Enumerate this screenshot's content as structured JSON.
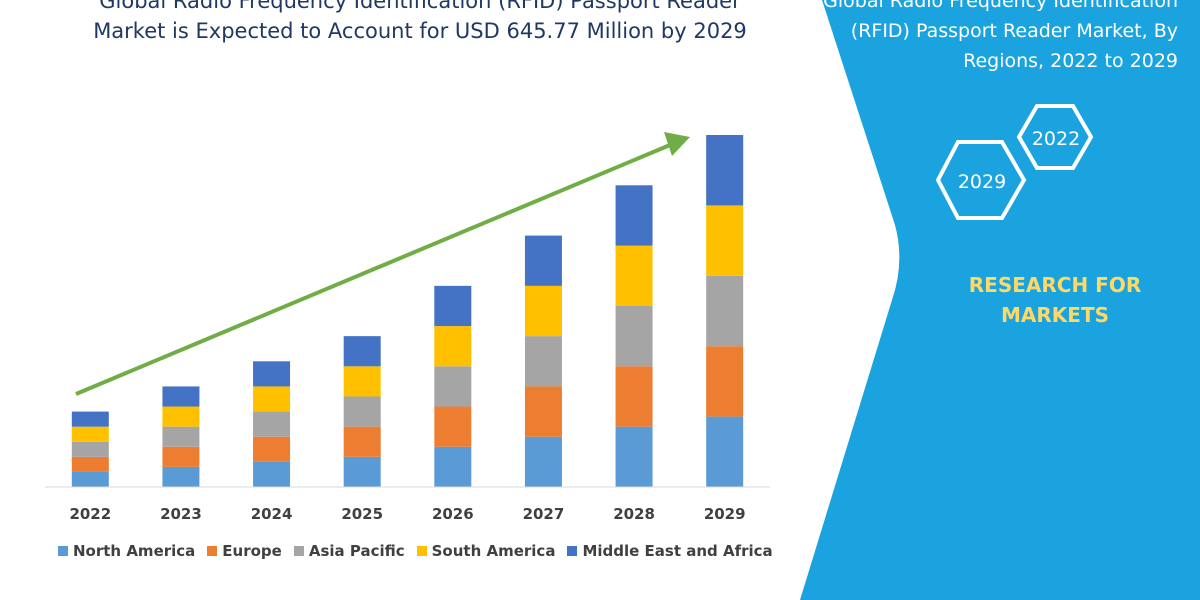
{
  "header": {
    "title": "Global Radio Frequency Identification (RFID) Passport Reader Market is Expected to Account for USD 645.77 Million by 2029"
  },
  "side_panel": {
    "title": "Global Radio Frequency Identification (RFID) Passport Reader Market, By Regions, 2022 to 2029",
    "hex_labels": [
      "2022",
      "2029"
    ],
    "brand": "RESEARCH FOR MARKETS",
    "colors": {
      "panel": "#1ba3e0",
      "hex_outline": "#ffffff",
      "brand": "#ffd966"
    }
  },
  "colors": {
    "trend_arrow": "#70ad47",
    "axis": "#d9d9d9"
  },
  "chart_data": {
    "type": "bar",
    "stacked": true,
    "categories": [
      "2022",
      "2023",
      "2024",
      "2025",
      "2026",
      "2027",
      "2028",
      "2029"
    ],
    "series": [
      {
        "name": "North America",
        "color": "#5b9bd5",
        "values": [
          15,
          20,
          25,
          30,
          40,
          50,
          60,
          70
        ]
      },
      {
        "name": "Europe",
        "color": "#ed7d31",
        "values": [
          15,
          20,
          25,
          30,
          40,
          50,
          60,
          70
        ]
      },
      {
        "name": "Asia Pacific",
        "color": "#a5a5a5",
        "values": [
          15,
          20,
          25,
          30,
          40,
          50,
          60,
          70
        ]
      },
      {
        "name": "South America",
        "color": "#ffc000",
        "values": [
          15,
          20,
          25,
          30,
          40,
          50,
          60,
          70
        ]
      },
      {
        "name": "Middle East and Africa",
        "color": "#4472c4",
        "values": [
          15,
          20,
          25,
          30,
          40,
          50,
          60,
          70
        ]
      }
    ],
    "ylim": [
      0,
      350
    ],
    "legend": "bottom",
    "trend_arrow": true
  }
}
